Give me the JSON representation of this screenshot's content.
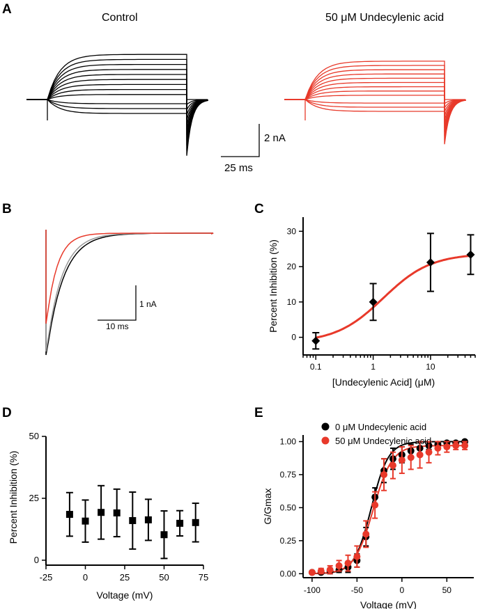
{
  "panels": {
    "a": {
      "letter": "A",
      "title_left": "Control",
      "title_right": "50 μM Undecylenic acid",
      "scale_y": "2 nA",
      "scale_x": "25 ms",
      "color_control": "#000000",
      "color_drug": "#e8392a"
    },
    "b": {
      "letter": "B",
      "scale_y": "1 nA",
      "scale_x": "10 ms"
    },
    "c": {
      "letter": "C"
    },
    "d": {
      "letter": "D"
    },
    "e": {
      "letter": "E"
    }
  },
  "chart_data": [
    {
      "id": "C",
      "type": "scatter",
      "xscale": "log",
      "xlabel": "[Undecylenic Acid] (μM)",
      "ylabel": "Percent Inhibition (%)",
      "xlim": [
        0.06,
        60
      ],
      "ylim": [
        -5,
        34
      ],
      "xticks": [
        0.1,
        1,
        10
      ],
      "xtick_labels": [
        "0.1",
        "1",
        "10"
      ],
      "yticks": [
        0,
        10,
        20,
        30
      ],
      "ytick_labels": [
        "0",
        "10",
        "20",
        "30"
      ],
      "fit_color": "#e8392a",
      "marker_color": "#000000",
      "series": [
        {
          "x": [
            0.1,
            1,
            10,
            50
          ],
          "y": [
            -1,
            10,
            21.2,
            23.4
          ],
          "err": [
            2.3,
            5.2,
            8.2,
            5.6
          ]
        }
      ]
    },
    {
      "id": "D",
      "type": "scatter",
      "xlabel": "Voltage (mV)",
      "ylabel": "Percent Inhibition (%)",
      "xlim": [
        -25,
        75
      ],
      "ylim": [
        -2,
        50
      ],
      "xticks": [
        -25,
        0,
        25,
        50,
        75
      ],
      "xtick_labels": [
        "-25",
        "0",
        "25",
        "50",
        "75"
      ],
      "yticks": [
        0,
        25,
        50
      ],
      "ytick_labels": [
        "0",
        "25",
        "50"
      ],
      "series": [
        {
          "x": [
            -10,
            0,
            10,
            20,
            30,
            40,
            50,
            60,
            70
          ],
          "y": [
            18.5,
            15.8,
            19.3,
            19.1,
            16,
            16.3,
            10.3,
            14.9,
            15.2
          ],
          "err": [
            8.8,
            8.5,
            10.8,
            9.6,
            11.5,
            8.3,
            9.6,
            5.1,
            7.8
          ]
        }
      ]
    },
    {
      "id": "E",
      "type": "scatter",
      "xlabel": "Voltage (mV)",
      "ylabel": "G/Gmax",
      "xlim": [
        -110,
        80
      ],
      "ylim": [
        -0.03,
        1.05
      ],
      "xticks": [
        -100,
        -50,
        0,
        50
      ],
      "xtick_labels": [
        "-100",
        "-50",
        "0",
        "50"
      ],
      "yticks": [
        0,
        0.25,
        0.5,
        0.75,
        1
      ],
      "ytick_labels": [
        "0.00",
        "0.25",
        "0.50",
        "0.75",
        "1.00"
      ],
      "legend_position": "top-left",
      "series": [
        {
          "name": "0 μM Undecylenic acid",
          "color": "#000000",
          "x": [
            -100,
            -90,
            -80,
            -70,
            -60,
            -50,
            -40,
            -30,
            -20,
            -10,
            0,
            10,
            20,
            30,
            40,
            50,
            60,
            70
          ],
          "y": [
            0.01,
            0.01,
            0.02,
            0.03,
            0.05,
            0.1,
            0.28,
            0.58,
            0.78,
            0.87,
            0.9,
            0.93,
            0.95,
            0.97,
            0.98,
            0.99,
            0.99,
            1.0
          ],
          "err": [
            0.01,
            0.01,
            0.02,
            0.02,
            0.04,
            0.05,
            0.07,
            0.07,
            0.09,
            0.08,
            0.06,
            0.05,
            0.05,
            0.03,
            0.02,
            0.01,
            0.01,
            0.01
          ]
        },
        {
          "name": "50 μM Undecylenic acid",
          "color": "#e8392a",
          "x": [
            -100,
            -90,
            -80,
            -70,
            -60,
            -50,
            -40,
            -30,
            -20,
            -10,
            0,
            10,
            20,
            30,
            40,
            50,
            60,
            70
          ],
          "y": [
            0.01,
            0.02,
            0.03,
            0.06,
            0.08,
            0.13,
            0.3,
            0.52,
            0.75,
            0.82,
            0.86,
            0.88,
            0.9,
            0.92,
            0.95,
            0.96,
            0.97,
            0.97
          ],
          "err": [
            0.01,
            0.02,
            0.03,
            0.04,
            0.06,
            0.08,
            0.1,
            0.1,
            0.12,
            0.1,
            0.1,
            0.09,
            0.1,
            0.08,
            0.05,
            0.04,
            0.03,
            0.03
          ]
        }
      ]
    }
  ]
}
